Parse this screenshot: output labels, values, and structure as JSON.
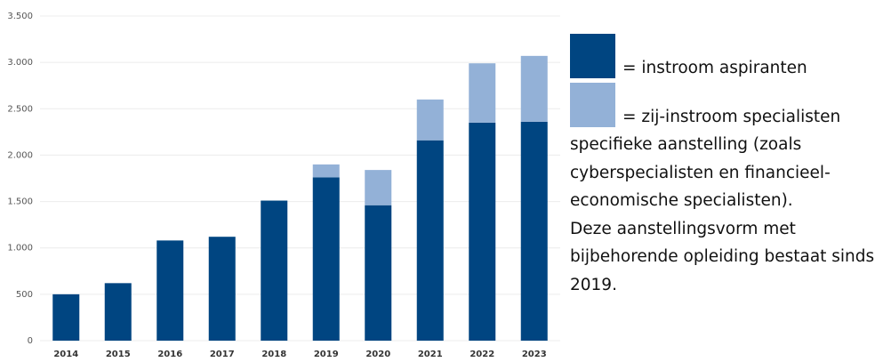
{
  "chart_data": {
    "type": "stacked-bar",
    "categories": [
      "2014",
      "2015",
      "2016",
      "2017",
      "2018",
      "2019",
      "2020",
      "2021",
      "2022",
      "2023"
    ],
    "series": [
      {
        "name": "= instroom aspiranten",
        "color": "#004581",
        "values": [
          500,
          620,
          1080,
          1120,
          1510,
          1760,
          1460,
          2160,
          2350,
          2360
        ]
      },
      {
        "name": "= zij-instroom specialisten specifieke aanstelling (zoals cyberspecialisten en financieel-economische specialisten).",
        "color": "#93b1d7",
        "values": [
          null,
          null,
          null,
          null,
          null,
          140,
          380,
          440,
          640,
          710
        ]
      }
    ],
    "note": "Deze aanstellingsvorm met bijbehorende opleiding bestaat sinds 2019.",
    "ylim": [
      0,
      3500
    ],
    "yticks": [
      0,
      500,
      {
        "value": 1000,
        "label": "1.000"
      },
      {
        "value": 1500,
        "label": "1.500"
      },
      {
        "value": 2000,
        "label": "2.000"
      },
      {
        "value": 2500,
        "label": "2.500"
      },
      {
        "value": 3000,
        "label": "3.000"
      },
      {
        "value": 3500,
        "label": "3.500"
      }
    ],
    "grid": true
  }
}
